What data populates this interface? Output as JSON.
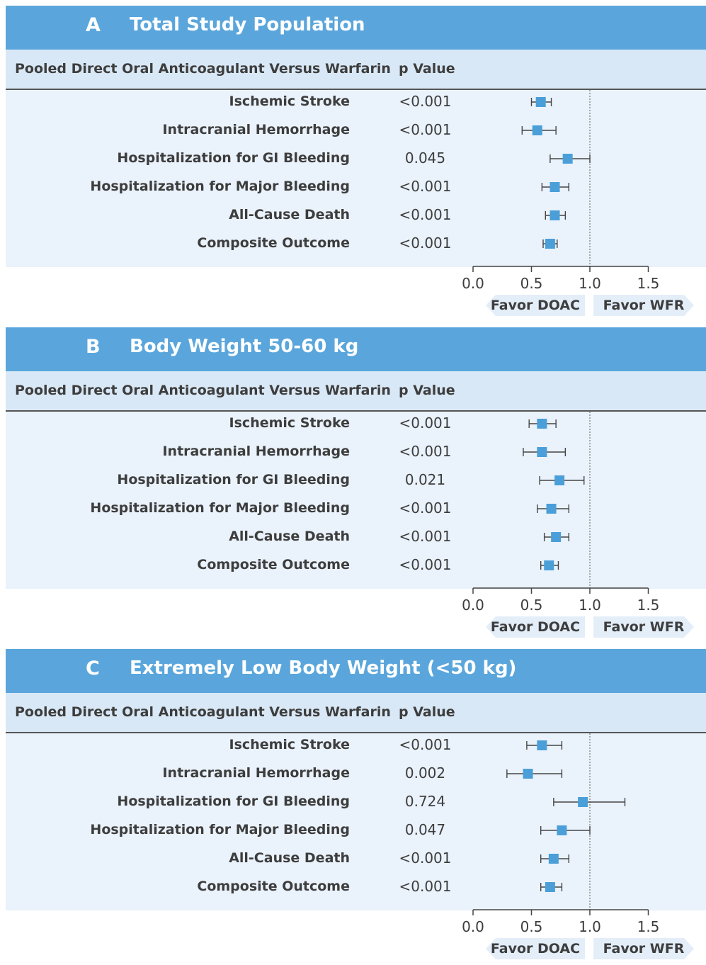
{
  "header_label": "Pooled Direct Oral Anticoagulant Versus Warfarin",
  "p_value_label": "p Value",
  "favor_left": "Favor DOAC",
  "favor_right": "Favor WFR",
  "colors": {
    "header": "#5aa6dc",
    "marker": "#4a9fd8",
    "row_bg": "#eaf2fb",
    "col_header_bg": "#d9e8f6"
  },
  "chart_data": [
    {
      "type": "forest",
      "panel": "A",
      "title": "Total Study Population",
      "x_ticks": [
        "0.0",
        "0.5",
        "1.0",
        "1.5"
      ],
      "xlim": [
        0,
        1.5
      ],
      "reference_line": 1.0,
      "rows": [
        {
          "label": "Ischemic Stroke",
          "p": "<0.001",
          "estimate": 0.58,
          "lower": 0.5,
          "upper": 0.67
        },
        {
          "label": "Intracranial Hemorrhage",
          "p": "<0.001",
          "estimate": 0.55,
          "lower": 0.42,
          "upper": 0.71
        },
        {
          "label": "Hospitalization for GI Bleeding",
          "p": "0.045",
          "estimate": 0.81,
          "lower": 0.66,
          "upper": 1.0
        },
        {
          "label": "Hospitalization for Major Bleeding",
          "p": "<0.001",
          "estimate": 0.7,
          "lower": 0.59,
          "upper": 0.82
        },
        {
          "label": "All-Cause Death",
          "p": "<0.001",
          "estimate": 0.7,
          "lower": 0.62,
          "upper": 0.79
        },
        {
          "label": "Composite Outcome",
          "p": "<0.001",
          "estimate": 0.66,
          "lower": 0.6,
          "upper": 0.72
        }
      ]
    },
    {
      "type": "forest",
      "panel": "B",
      "title": "Body Weight 50-60 kg",
      "x_ticks": [
        "0.0",
        "0.5",
        "1.0",
        "1.5"
      ],
      "xlim": [
        0,
        1.5
      ],
      "reference_line": 1.0,
      "rows": [
        {
          "label": "Ischemic Stroke",
          "p": "<0.001",
          "estimate": 0.59,
          "lower": 0.48,
          "upper": 0.71
        },
        {
          "label": "Intracranial Hemorrhage",
          "p": "<0.001",
          "estimate": 0.59,
          "lower": 0.43,
          "upper": 0.79
        },
        {
          "label": "Hospitalization for GI Bleeding",
          "p": "0.021",
          "estimate": 0.74,
          "lower": 0.57,
          "upper": 0.95
        },
        {
          "label": "Hospitalization for Major Bleeding",
          "p": "<0.001",
          "estimate": 0.67,
          "lower": 0.55,
          "upper": 0.82
        },
        {
          "label": "All-Cause Death",
          "p": "<0.001",
          "estimate": 0.71,
          "lower": 0.61,
          "upper": 0.82
        },
        {
          "label": "Composite Outcome",
          "p": "<0.001",
          "estimate": 0.65,
          "lower": 0.58,
          "upper": 0.73
        }
      ]
    },
    {
      "type": "forest",
      "panel": "C",
      "title": "Extremely Low Body Weight (<50 kg)",
      "x_ticks": [
        "0.0",
        "0.5",
        "1.0",
        "1.5"
      ],
      "xlim": [
        0,
        1.5
      ],
      "reference_line": 1.0,
      "rows": [
        {
          "label": "Ischemic Stroke",
          "p": "<0.001",
          "estimate": 0.59,
          "lower": 0.46,
          "upper": 0.76
        },
        {
          "label": "Intracranial Hemorrhage",
          "p": "0.002",
          "estimate": 0.47,
          "lower": 0.29,
          "upper": 0.76
        },
        {
          "label": "Hospitalization for GI Bleeding",
          "p": "0.724",
          "estimate": 0.94,
          "lower": 0.69,
          "upper": 1.3
        },
        {
          "label": "Hospitalization for Major Bleeding",
          "p": "0.047",
          "estimate": 0.76,
          "lower": 0.58,
          "upper": 1.0
        },
        {
          "label": "All-Cause Death",
          "p": "<0.001",
          "estimate": 0.69,
          "lower": 0.58,
          "upper": 0.82
        },
        {
          "label": "Composite Outcome",
          "p": "<0.001",
          "estimate": 0.66,
          "lower": 0.58,
          "upper": 0.76
        }
      ]
    }
  ]
}
